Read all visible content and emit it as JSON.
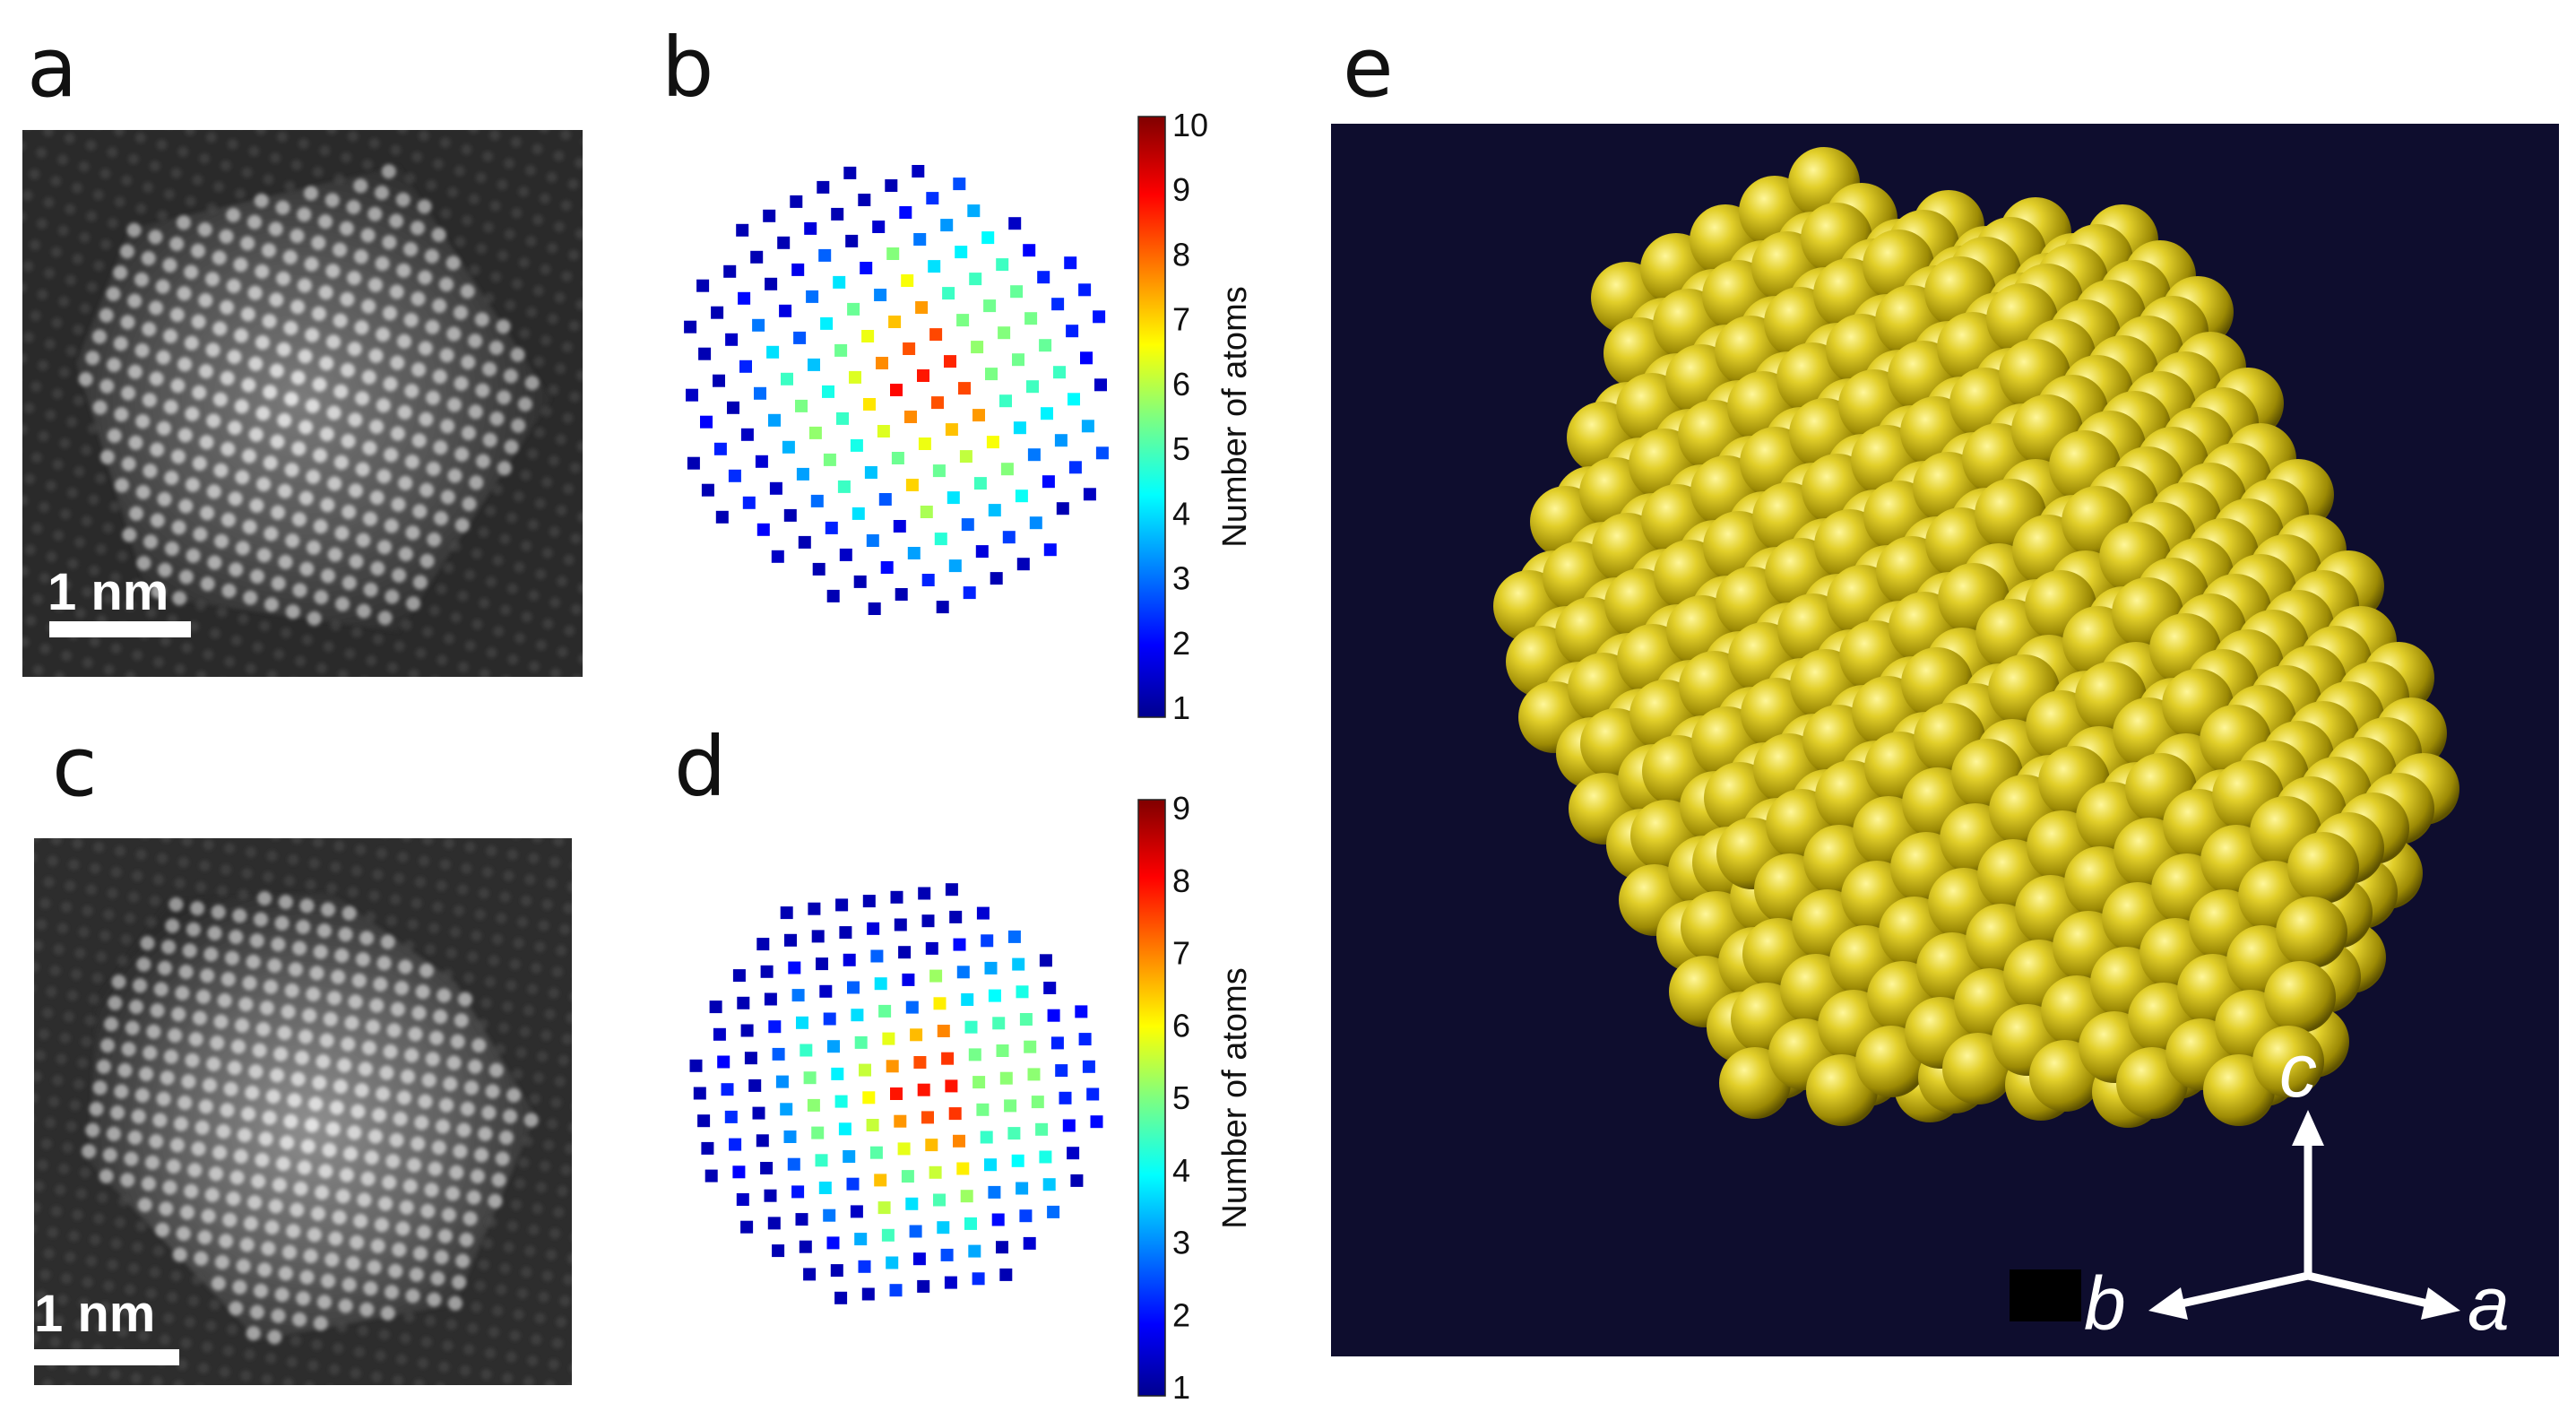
{
  "panels": {
    "a": {
      "letter": "a",
      "scale_label": "1 nm"
    },
    "b": {
      "letter": "b",
      "colorbar_label": "Number of atoms",
      "colorbar_ticks": [
        "1",
        "2",
        "3",
        "4",
        "5",
        "6",
        "7",
        "8",
        "9",
        "10"
      ]
    },
    "c": {
      "letter": "c",
      "scale_label": "1 nm"
    },
    "d": {
      "letter": "d",
      "colorbar_label": "Number of atoms",
      "colorbar_ticks": [
        "1",
        "2",
        "3",
        "4",
        "5",
        "6",
        "7",
        "8",
        "9"
      ]
    },
    "e": {
      "letter": "e",
      "axes": {
        "c": "c",
        "b": "b",
        "a": "a"
      }
    }
  },
  "colors": {
    "stem_background": "#2a2a2a",
    "render_background": "#0e0d2e",
    "atom_color": "#d8c21c",
    "scale_bar": "#ffffff"
  }
}
